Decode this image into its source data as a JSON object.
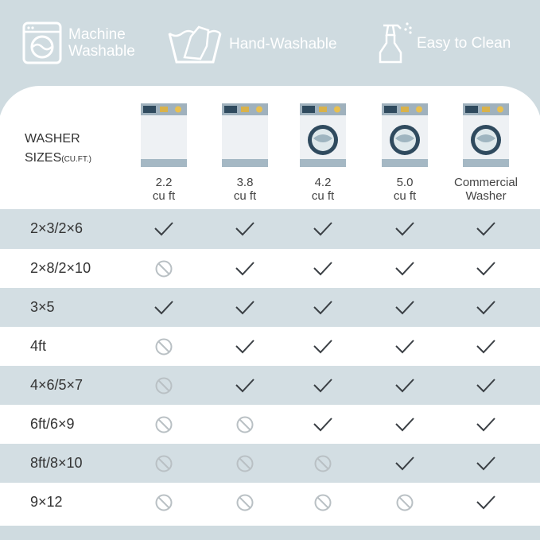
{
  "features": [
    {
      "icon": "washing-machine-icon",
      "label_lines": [
        "Machine",
        "Washable"
      ]
    },
    {
      "icon": "hand-wash-icon",
      "label_lines": [
        "Hand-Washable"
      ]
    },
    {
      "icon": "spray-bottle-icon",
      "label_lines": [
        "Easy to Clean"
      ]
    }
  ],
  "table": {
    "header_label": "WASHER",
    "header_label2": "SIZES",
    "header_unit": "(CU.FT.)",
    "columns": [
      {
        "line1": "2.2",
        "line2": "cu ft",
        "drum": false
      },
      {
        "line1": "3.8",
        "line2": "cu ft",
        "drum": false
      },
      {
        "line1": "4.2",
        "line2": "cu ft",
        "drum": true
      },
      {
        "line1": "5.0",
        "line2": "cu ft",
        "drum": true
      },
      {
        "line1": "Commercial",
        "line2": "Washer",
        "drum": true
      }
    ],
    "rows": [
      {
        "size": "2×3/2×6",
        "fit": [
          true,
          true,
          true,
          true,
          true
        ]
      },
      {
        "size": "2×8/2×10",
        "fit": [
          false,
          true,
          true,
          true,
          true
        ]
      },
      {
        "size": "3×5",
        "fit": [
          true,
          true,
          true,
          true,
          true
        ]
      },
      {
        "size": "4ft",
        "fit": [
          false,
          true,
          true,
          true,
          true
        ]
      },
      {
        "size": "4×6/5×7",
        "fit": [
          false,
          true,
          true,
          true,
          true
        ]
      },
      {
        "size": "6ft/6×9",
        "fit": [
          false,
          false,
          true,
          true,
          true
        ]
      },
      {
        "size": "8ft/8×10",
        "fit": [
          false,
          false,
          false,
          true,
          true
        ]
      },
      {
        "size": "9×12",
        "fit": [
          false,
          false,
          false,
          false,
          true
        ]
      }
    ]
  },
  "colors": {
    "background": "#cfdbe0",
    "row_shade": "#d3dee3",
    "check": "#3a3f44",
    "no": "#b9c0c4"
  }
}
